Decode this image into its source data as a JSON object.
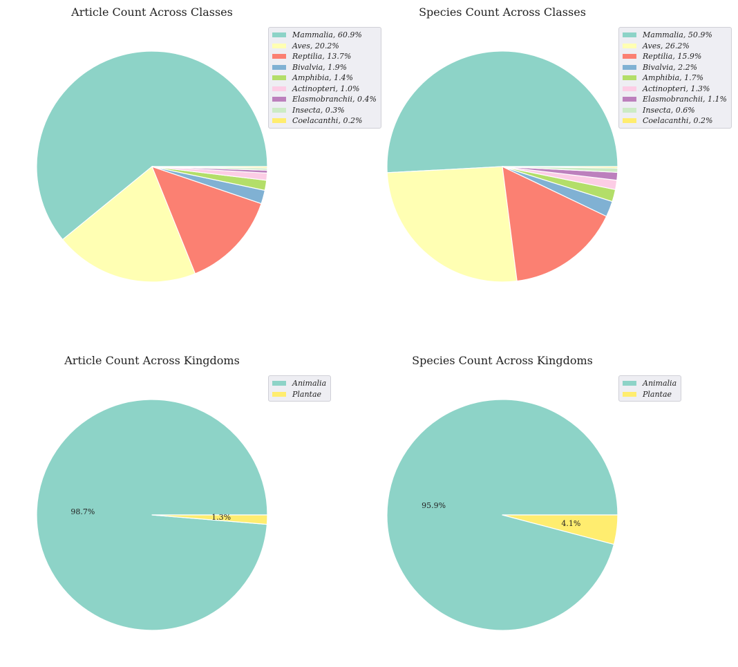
{
  "chart_data": [
    {
      "id": "article-classes",
      "type": "pie",
      "title": "Article Count Across Classes",
      "categories": [
        "Mammalia",
        "Aves",
        "Reptilia",
        "Bivalvia",
        "Amphibia",
        "Actinopteri",
        "Elasmobranchii",
        "Insecta",
        "Coelacanthi"
      ],
      "values": [
        60.9,
        20.2,
        13.7,
        1.9,
        1.4,
        1.0,
        0.4,
        0.3,
        0.2
      ],
      "legend_labels": [
        "Mammalia, 60.9%",
        "Aves, 20.2%",
        "Reptilia, 13.7%",
        "Bivalvia, 1.9%",
        "Amphibia, 1.4%",
        "Actinopteri, 1.0%",
        "Elasmobranchii, 0.4%",
        "Insecta, 0.3%",
        "Coelacanthi, 0.2%"
      ],
      "slice_labels": [],
      "colors": [
        "#8dd3c7",
        "#ffffb3",
        "#fb8072",
        "#80b1d3",
        "#b3de69",
        "#fccde5",
        "#bc80bd",
        "#ccebc5",
        "#ffed6f"
      ],
      "legend_placement": "top-right"
    },
    {
      "id": "species-classes",
      "type": "pie",
      "title": "Species Count Across Classes",
      "categories": [
        "Mammalia",
        "Aves",
        "Reptilia",
        "Bivalvia",
        "Amphibia",
        "Actinopteri",
        "Elasmobranchii",
        "Insecta",
        "Coelacanthi"
      ],
      "values": [
        50.9,
        26.2,
        15.9,
        2.2,
        1.7,
        1.3,
        1.1,
        0.6,
        0.2
      ],
      "legend_labels": [
        "Mammalia, 50.9%",
        "Aves, 26.2%",
        "Reptilia, 15.9%",
        "Bivalvia, 2.2%",
        "Amphibia, 1.7%",
        "Actinopteri, 1.3%",
        "Elasmobranchii, 1.1%",
        "Insecta, 0.6%",
        "Coelacanthi, 0.2%"
      ],
      "slice_labels": [],
      "colors": [
        "#8dd3c7",
        "#ffffb3",
        "#fb8072",
        "#80b1d3",
        "#b3de69",
        "#fccde5",
        "#bc80bd",
        "#ccebc5",
        "#ffed6f"
      ],
      "legend_placement": "top-right"
    },
    {
      "id": "article-kingdoms",
      "type": "pie",
      "title": "Article Count Across Kingdoms",
      "categories": [
        "Animalia",
        "Plantae"
      ],
      "values": [
        98.7,
        1.3
      ],
      "legend_labels": [
        "Animalia",
        "Plantae"
      ],
      "slice_labels": [
        "98.7%",
        "1.3%"
      ],
      "colors": [
        "#8dd3c7",
        "#ffed6f"
      ],
      "legend_placement": "top-right"
    },
    {
      "id": "species-kingdoms",
      "type": "pie",
      "title": "Species Count Across Kingdoms",
      "categories": [
        "Animalia",
        "Plantae"
      ],
      "values": [
        95.9,
        4.1
      ],
      "legend_labels": [
        "Animalia",
        "Plantae"
      ],
      "slice_labels": [
        "95.9%",
        "4.1%"
      ],
      "colors": [
        "#8dd3c7",
        "#ffed6f"
      ],
      "legend_placement": "top-right"
    }
  ]
}
